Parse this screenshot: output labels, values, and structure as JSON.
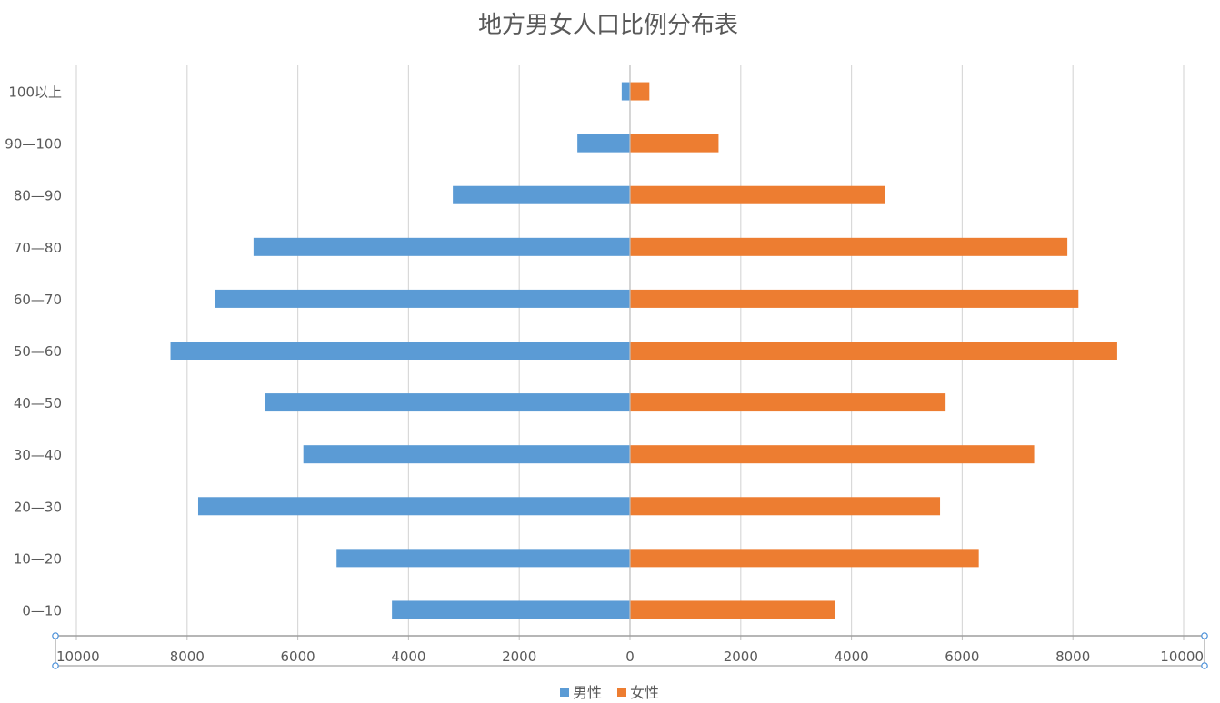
{
  "chart_data": {
    "type": "bar",
    "orientation": "horizontal",
    "layout": "diverging",
    "title": "地方男女人口比例分布表",
    "categories": [
      "0—10",
      "10—20",
      "20—30",
      "30—40",
      "40—50",
      "50—60",
      "60—70",
      "70—80",
      "80—90",
      "90—100",
      "100以上"
    ],
    "series": [
      {
        "name": "男性",
        "color": "#5b9bd5",
        "side": "left",
        "values": [
          4300,
          5300,
          7800,
          5900,
          6600,
          8300,
          7500,
          6800,
          3200,
          950,
          150
        ]
      },
      {
        "name": "女性",
        "color": "#ed7d31",
        "side": "right",
        "values": [
          3700,
          6300,
          5600,
          7300,
          5700,
          8800,
          8100,
          7900,
          4600,
          1600,
          350
        ]
      }
    ],
    "xlim": [
      -10000,
      10000
    ],
    "x_ticks": [
      -10000,
      -8000,
      -6000,
      -4000,
      -2000,
      0,
      2000,
      4000,
      6000,
      8000,
      10000
    ],
    "x_tick_labels": [
      "10000",
      "8000",
      "6000",
      "4000",
      "2000",
      "0",
      "2000",
      "4000",
      "6000",
      "8000",
      "10000"
    ],
    "grid": true,
    "legend_position": "bottom"
  }
}
